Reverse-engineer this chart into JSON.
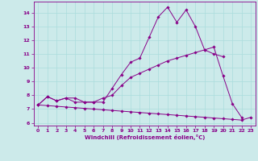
{
  "xlabel": "Windchill (Refroidissement éolien,°C)",
  "background_color": "#cceaea",
  "line_color": "#880088",
  "grid_color": "#aadddd",
  "xlim": [
    -0.5,
    23.5
  ],
  "ylim": [
    5.8,
    14.8
  ],
  "yticks": [
    6,
    7,
    8,
    9,
    10,
    11,
    12,
    13,
    14
  ],
  "xticks": [
    0,
    1,
    2,
    3,
    4,
    5,
    6,
    7,
    8,
    9,
    10,
    11,
    12,
    13,
    14,
    15,
    16,
    17,
    18,
    19,
    20,
    21,
    22,
    23
  ],
  "line1_y": [
    7.3,
    7.9,
    7.6,
    7.8,
    7.8,
    7.5,
    7.5,
    7.5,
    8.5,
    9.5,
    10.4,
    10.7,
    12.2,
    13.7,
    14.4,
    13.3,
    14.2,
    13.0,
    11.3,
    11.5,
    9.4,
    7.4,
    6.4,
    null
  ],
  "line2_y": [
    7.3,
    7.9,
    7.6,
    7.8,
    7.5,
    7.5,
    7.5,
    7.8,
    8.0,
    8.7,
    9.3,
    9.6,
    9.9,
    10.2,
    10.5,
    10.7,
    10.9,
    11.1,
    11.3,
    11.0,
    10.8,
    null,
    null,
    null
  ],
  "line3_y": [
    7.3,
    7.25,
    7.2,
    7.15,
    7.1,
    7.05,
    7.0,
    6.95,
    6.9,
    6.85,
    6.8,
    6.75,
    6.7,
    6.65,
    6.6,
    6.55,
    6.5,
    6.45,
    6.4,
    6.35,
    6.3,
    6.25,
    6.2,
    6.4
  ]
}
